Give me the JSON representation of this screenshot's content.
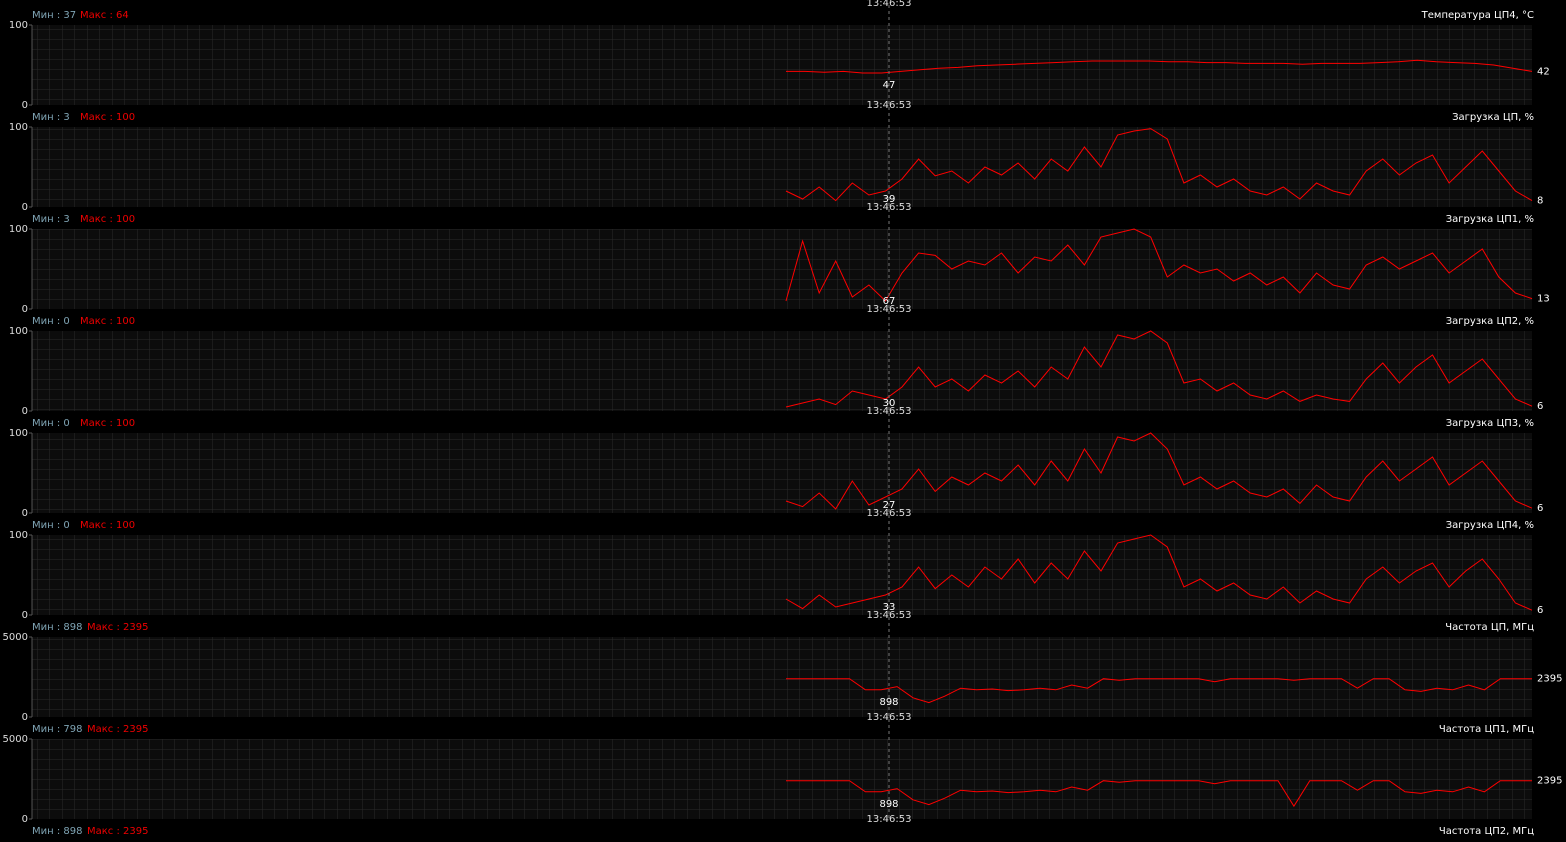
{
  "top_time": "13:46:53",
  "panels": [
    {
      "min_label": "Мин : 37",
      "max_label": "Макс : 64",
      "title": "Температура ЦП4, °C",
      "ylim": [
        0,
        100
      ],
      "yticks": [
        0,
        100
      ],
      "time": "13:46:53",
      "cursor_value": "47",
      "current_value": "42",
      "values": [
        42,
        42,
        41,
        42,
        40,
        40,
        42,
        44,
        46,
        47,
        49,
        50,
        51,
        52,
        53,
        54,
        55,
        55,
        55,
        55,
        54,
        54,
        53,
        53,
        52,
        52,
        52,
        51,
        52,
        52,
        52,
        53,
        54,
        56,
        54,
        53,
        52,
        50,
        46,
        42
      ]
    },
    {
      "min_label": "Мин : 3",
      "max_label": "Макс : 100",
      "title": "Загрузка ЦП, %",
      "ylim": [
        0,
        100
      ],
      "yticks": [
        0,
        100
      ],
      "time": "13:46:53",
      "cursor_value": "39",
      "current_value": "8",
      "values": [
        20,
        10,
        25,
        8,
        30,
        15,
        20,
        35,
        60,
        39,
        45,
        30,
        50,
        40,
        55,
        35,
        60,
        45,
        75,
        50,
        90,
        95,
        98,
        85,
        30,
        40,
        25,
        35,
        20,
        15,
        25,
        10,
        30,
        20,
        15,
        45,
        60,
        40,
        55,
        65,
        30,
        50,
        70,
        45,
        20,
        8
      ]
    },
    {
      "min_label": "Мин : 3",
      "max_label": "Макс : 100",
      "title": "Загрузка ЦП1, %",
      "ylim": [
        0,
        100
      ],
      "yticks": [
        0,
        100
      ],
      "time": "13:46:53",
      "cursor_value": "67",
      "current_value": "13",
      "values": [
        10,
        85,
        20,
        60,
        15,
        30,
        10,
        45,
        70,
        67,
        50,
        60,
        55,
        70,
        45,
        65,
        60,
        80,
        55,
        90,
        95,
        100,
        90,
        40,
        55,
        45,
        50,
        35,
        45,
        30,
        40,
        20,
        45,
        30,
        25,
        55,
        65,
        50,
        60,
        70,
        45,
        60,
        75,
        40,
        20,
        13
      ]
    },
    {
      "min_label": "Мин : 0",
      "max_label": "Макс : 100",
      "title": "Загрузка ЦП2, %",
      "ylim": [
        0,
        100
      ],
      "yticks": [
        0,
        100
      ],
      "time": "13:46:53",
      "cursor_value": "30",
      "current_value": "6",
      "values": [
        5,
        10,
        15,
        8,
        25,
        20,
        15,
        30,
        55,
        30,
        40,
        25,
        45,
        35,
        50,
        30,
        55,
        40,
        80,
        55,
        95,
        90,
        100,
        85,
        35,
        40,
        25,
        35,
        20,
        15,
        25,
        12,
        20,
        15,
        12,
        40,
        60,
        35,
        55,
        70,
        35,
        50,
        65,
        40,
        15,
        6
      ]
    },
    {
      "min_label": "Мин : 0",
      "max_label": "Макс : 100",
      "title": "Загрузка ЦП3, %",
      "ylim": [
        0,
        100
      ],
      "yticks": [
        0,
        100
      ],
      "time": "13:46:53",
      "cursor_value": "27",
      "current_value": "6",
      "values": [
        15,
        8,
        25,
        5,
        40,
        10,
        20,
        30,
        55,
        27,
        45,
        35,
        50,
        40,
        60,
        35,
        65,
        40,
        80,
        50,
        95,
        90,
        100,
        80,
        35,
        45,
        30,
        40,
        25,
        20,
        30,
        12,
        35,
        20,
        15,
        45,
        65,
        40,
        55,
        70,
        35,
        50,
        65,
        40,
        15,
        6
      ]
    },
    {
      "min_label": "Мин : 0",
      "max_label": "Макс : 100",
      "title": "Загрузка ЦП4, %",
      "ylim": [
        0,
        100
      ],
      "yticks": [
        0,
        100
      ],
      "time": "13:46:53",
      "cursor_value": "33",
      "current_value": "6",
      "values": [
        20,
        8,
        25,
        10,
        15,
        20,
        25,
        35,
        60,
        33,
        50,
        35,
        60,
        45,
        70,
        40,
        65,
        45,
        80,
        55,
        90,
        95,
        100,
        85,
        35,
        45,
        30,
        40,
        25,
        20,
        35,
        15,
        30,
        20,
        15,
        45,
        60,
        40,
        55,
        65,
        35,
        55,
        70,
        45,
        15,
        6
      ]
    },
    {
      "min_label": "Мин : 898",
      "max_label": "Макс : 2395",
      "title": "Частота ЦП, МГц",
      "ylim": [
        0,
        5000
      ],
      "yticks": [
        0,
        5000
      ],
      "time": "13:46:53",
      "cursor_value": "898",
      "current_value": "2395",
      "values": [
        2395,
        2395,
        2395,
        2395,
        2395,
        1700,
        1700,
        1900,
        1200,
        898,
        1300,
        1800,
        1700,
        1750,
        1650,
        1700,
        1800,
        1700,
        2000,
        1800,
        2395,
        2300,
        2395,
        2395,
        2395,
        2395,
        2395,
        2200,
        2395,
        2395,
        2395,
        2395,
        2300,
        2395,
        2395,
        2395,
        1800,
        2395,
        2395,
        1700,
        1600,
        1800,
        1700,
        2000,
        1700,
        2395,
        2395,
        2395
      ]
    },
    {
      "min_label": "Мин : 798",
      "max_label": "Макс : 2395",
      "title": "Частота ЦП1, МГц",
      "ylim": [
        0,
        5000
      ],
      "yticks": [
        0,
        5000
      ],
      "time": "13:46:53",
      "cursor_value": "898",
      "current_value": "2395",
      "values": [
        2395,
        2395,
        2395,
        2395,
        2395,
        1700,
        1700,
        1900,
        1200,
        898,
        1300,
        1800,
        1700,
        1750,
        1650,
        1700,
        1800,
        1700,
        2000,
        1800,
        2395,
        2300,
        2395,
        2395,
        2395,
        2395,
        2395,
        2200,
        2395,
        2395,
        2395,
        2395,
        798,
        2395,
        2395,
        2395,
        1800,
        2395,
        2395,
        1700,
        1600,
        1800,
        1700,
        2000,
        1700,
        2395,
        2395,
        2395
      ]
    },
    {
      "min_label": "Мин : 898",
      "max_label": "Макс : 2395",
      "title": "Частота ЦП2, МГц"
    }
  ]
}
